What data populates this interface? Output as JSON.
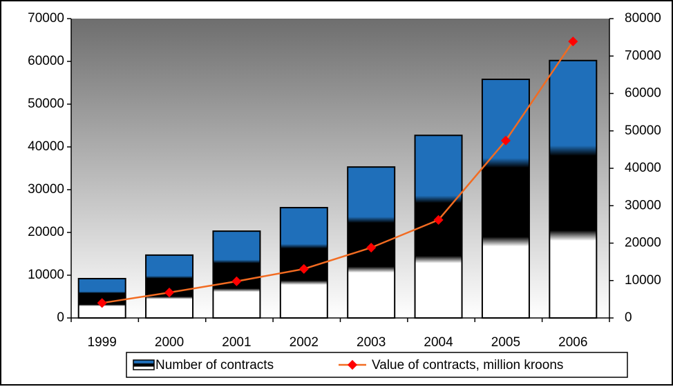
{
  "chart_data": {
    "type": "bar_line",
    "categories": [
      "1999",
      "2000",
      "2001",
      "2002",
      "2003",
      "2004",
      "2005",
      "2006"
    ],
    "series": [
      {
        "name": "Number of contracts",
        "type": "bar",
        "color": "#1f6fba",
        "values": [
          9200,
          14700,
          20300,
          25800,
          35300,
          42700,
          55800,
          60200
        ]
      },
      {
        "name": "Value of contracts, million kroons",
        "type": "line",
        "axis": "y2",
        "color": "#f26b21",
        "marker_color": "#ff0000",
        "values": [
          4000,
          6800,
          9800,
          13100,
          18800,
          26200,
          47400,
          73900
        ]
      }
    ],
    "ylim": [
      0,
      70000
    ],
    "yticks": [
      0,
      10000,
      20000,
      30000,
      40000,
      50000,
      60000,
      70000
    ],
    "y2lim": [
      0,
      80000
    ],
    "y2ticks": [
      0,
      10000,
      20000,
      30000,
      40000,
      50000,
      60000,
      70000,
      80000
    ]
  }
}
